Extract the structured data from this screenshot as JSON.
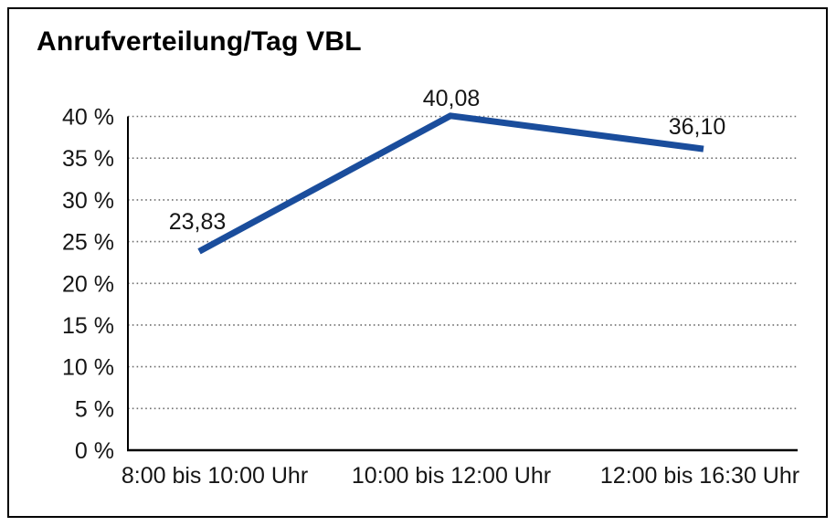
{
  "window": {
    "background_color": "#ffffff",
    "border_color": "#000000"
  },
  "chart_data": {
    "type": "line",
    "title": "Anrufverteilung/Tag VBL",
    "categories": [
      "8:00 bis 10:00 Uhr",
      "10:00 bis 12:00 Uhr",
      "12:00 bis 16:30 Uhr"
    ],
    "values": [
      23.83,
      40.08,
      36.1
    ],
    "point_labels": [
      "23,83",
      "40,08",
      "36,10"
    ],
    "xlabel": "",
    "ylabel": "",
    "ylim": [
      0,
      40
    ],
    "ytick_step": 5,
    "ytick_labels": [
      "0 %",
      "5 %",
      "10 %",
      "15 %",
      "20 %",
      "25 %",
      "30 %",
      "35 %",
      "40 %"
    ],
    "grid": "horizontal-dotted",
    "legend": "none",
    "line_color": "#1a4d9c",
    "grid_color": "#6f6f6f",
    "axis_color": "#000000",
    "text_color": "#161616"
  }
}
